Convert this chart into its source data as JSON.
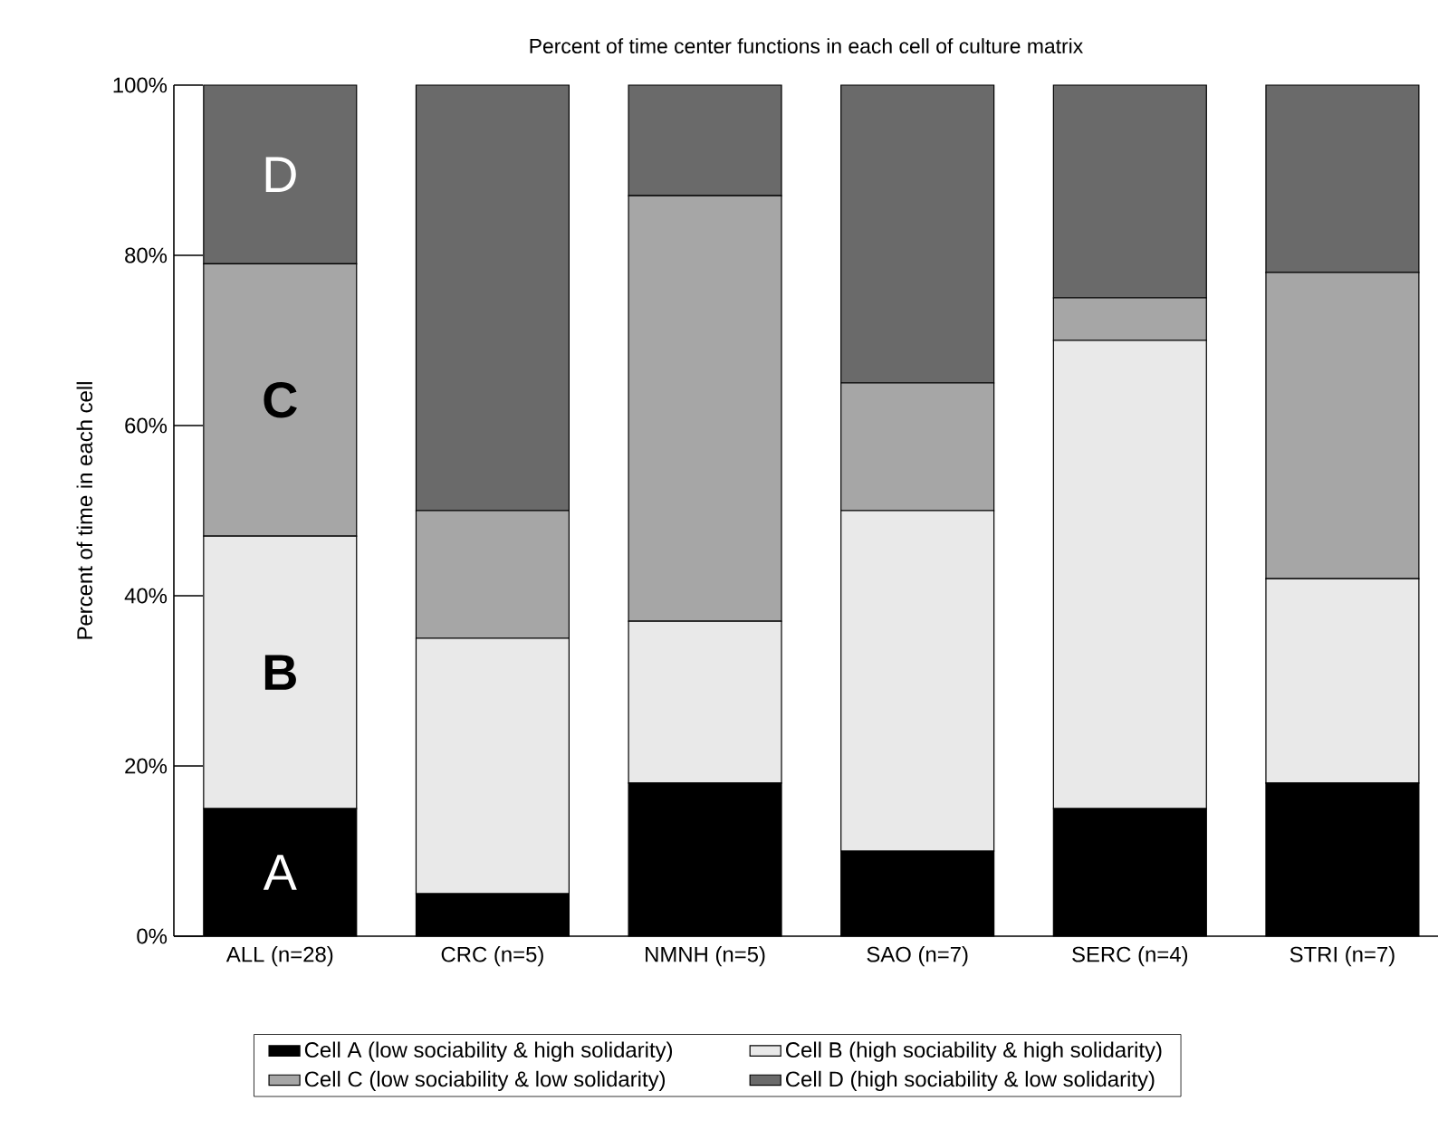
{
  "chart_data": {
    "type": "bar",
    "stacked": true,
    "title": "Percent of time center functions in each cell of culture matrix",
    "ylabel": "Percent of time in each cell",
    "categories": [
      "ALL (n=28)",
      "CRC (n=5)",
      "NMNH (n=5)",
      "SAO (n=7)",
      "SERC (n=4)",
      "STRI (n=7)"
    ],
    "series": [
      {
        "name": "Cell A (low sociability & high solidarity)",
        "color": "#000000",
        "values": [
          15,
          5,
          18,
          10,
          15,
          18
        ]
      },
      {
        "name": "Cell B (high sociability & high solidarity)",
        "color": "#e9e9e9",
        "values": [
          32,
          30,
          19,
          40,
          55,
          24
        ]
      },
      {
        "name": "Cell C (low sociability & low solidarity)",
        "color": "#a6a6a6",
        "values": [
          32,
          15,
          50,
          15,
          5,
          36
        ]
      },
      {
        "name": "Cell D (high sociability & low solidarity)",
        "color": "#6a6a6a",
        "values": [
          21,
          50,
          13,
          35,
          25,
          22
        ]
      }
    ],
    "ylim": [
      0,
      100
    ],
    "yticks": [
      {
        "value": 0,
        "label": "0%"
      },
      {
        "value": 20,
        "label": "20%"
      },
      {
        "value": 40,
        "label": "40%"
      },
      {
        "value": 60,
        "label": "60%"
      },
      {
        "value": 80,
        "label": "80%"
      },
      {
        "value": 100,
        "label": "100%"
      }
    ],
    "annotations": [
      "A",
      "B",
      "C",
      "D"
    ],
    "legend": "bottom",
    "grid": false
  }
}
